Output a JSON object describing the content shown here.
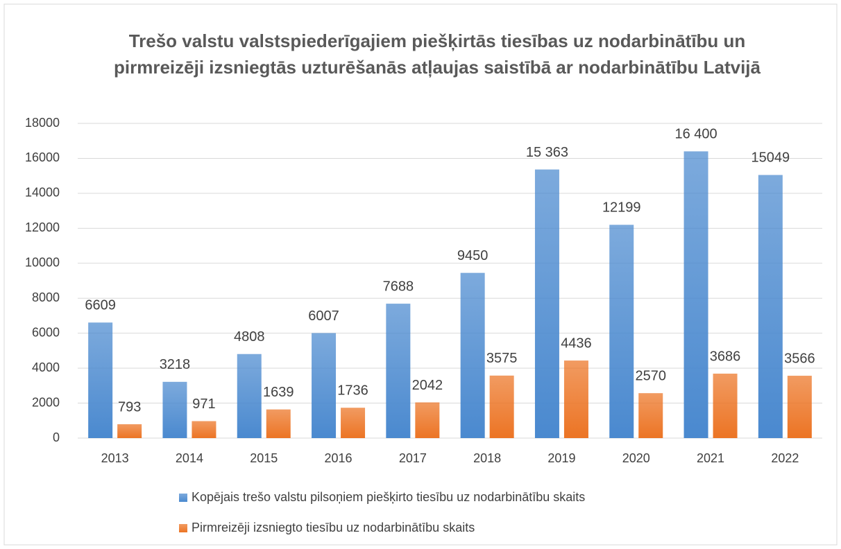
{
  "chart_data": {
    "type": "bar",
    "title": "Trešo valstu valstspiederīgajiem piešķirtās tiesības uz nodarbinātību un pirmreizēji izsniegtās uzturēšanās atļaujas saistībā ar nodarbinātību Latvijā",
    "categories": [
      "2013",
      "2014",
      "2015",
      "2016",
      "2017",
      "2018",
      "2019",
      "2020",
      "2021",
      "2022"
    ],
    "series": [
      {
        "name": "Kopējais trešo valstu pilsoņiem piešķirto tiesību uz nodarbinātību skaits",
        "color": "#4a89cf",
        "values": [
          6609,
          3218,
          4808,
          6007,
          7688,
          9450,
          15363,
          12199,
          16400,
          15049
        ],
        "value_labels": [
          "6609",
          "3218",
          "4808",
          "6007",
          "7688",
          "9450",
          "15 363",
          "12199",
          "16 400",
          "15049"
        ]
      },
      {
        "name": "Pirmreizēji izsniegto tiesību uz nodarbinātību  skaits",
        "color": "#ec7424",
        "values": [
          793,
          971,
          1639,
          1736,
          2042,
          3575,
          4436,
          2570,
          3686,
          3566
        ],
        "value_labels": [
          "793",
          "971",
          "1639",
          "1736",
          "2042",
          "3575",
          "4436",
          "2570",
          "3686",
          "3566"
        ]
      }
    ],
    "ylim": [
      0,
      18000
    ],
    "yticks": [
      0,
      2000,
      4000,
      6000,
      8000,
      10000,
      12000,
      14000,
      16000,
      18000
    ],
    "grid": true,
    "legend": "bottom"
  }
}
